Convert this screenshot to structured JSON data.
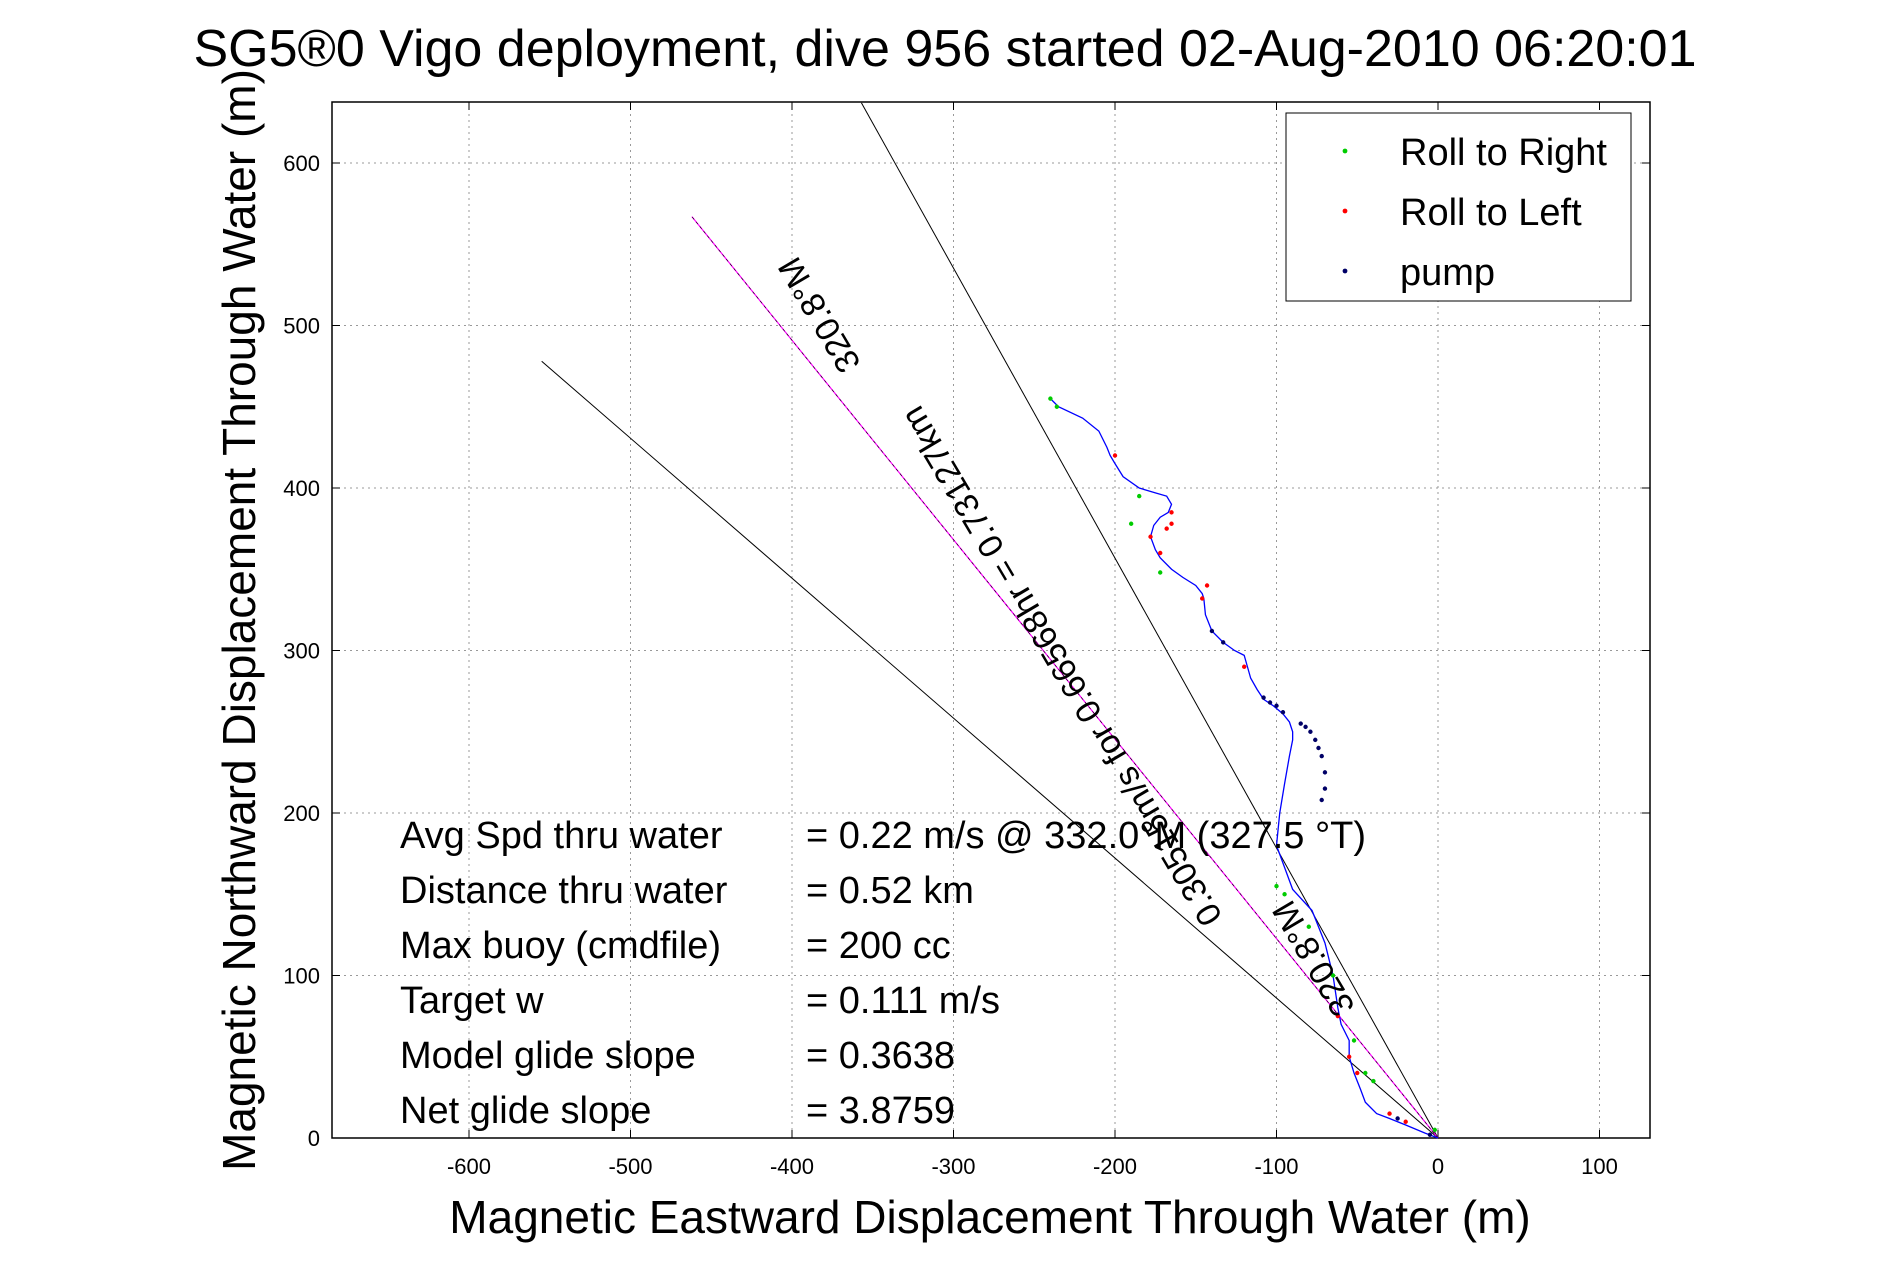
{
  "chart_data": {
    "type": "line",
    "title": "SG5®0 Vigo deployment, dive 956 started 02-Aug-2010 06:20:01",
    "xlabel": "Magnetic Eastward Displacement Through Water (m)",
    "ylabel": "Magnetic Northward Displacement Through Water (m)",
    "xlim": [
      -680,
      130
    ],
    "ylim": [
      0,
      640
    ],
    "xticks": [
      -600,
      -500,
      -400,
      -300,
      -200,
      -100,
      0,
      100
    ],
    "yticks": [
      0,
      100,
      200,
      300,
      400,
      500,
      600
    ],
    "xtick_labels": [
      "-600",
      "-500",
      "-400",
      "-300",
      "-200",
      "-100",
      "0",
      "100"
    ],
    "ytick_labels": [
      "0",
      "100",
      "200",
      "300",
      "400",
      "500",
      "600"
    ],
    "grid": true,
    "legend_position": "top-right",
    "legend": [
      {
        "label": "Roll to Right",
        "color": "#00cc00"
      },
      {
        "label": "Roll to Left",
        "color": "#ff0000"
      },
      {
        "label": "pump",
        "color": "#000066"
      }
    ],
    "track": {
      "color": "#0000ff",
      "x": [
        0,
        -8,
        -20,
        -30,
        -38,
        -45,
        -48,
        -52,
        -55,
        -55,
        -60,
        -62,
        -65,
        -70,
        -78,
        -90,
        -100,
        -98,
        -95,
        -92,
        -90,
        -90,
        -92,
        -96,
        -102,
        -108,
        -112,
        -116,
        -118,
        -120,
        -126,
        -133,
        -140,
        -144,
        -145,
        -146,
        -150,
        -158,
        -165,
        -172,
        -175,
        -178,
        -176,
        -172,
        -167,
        -165,
        -168,
        -175,
        -185,
        -195,
        -200,
        -203,
        -205,
        -210,
        -220,
        -235,
        -240
      ],
      "y": [
        0,
        3,
        8,
        12,
        15,
        22,
        30,
        40,
        50,
        60,
        70,
        80,
        100,
        120,
        140,
        153,
        180,
        200,
        218,
        235,
        245,
        250,
        256,
        261,
        266,
        270,
        276,
        283,
        290,
        297,
        300,
        305,
        312,
        322,
        332,
        335,
        340,
        345,
        350,
        357,
        362,
        370,
        377,
        382,
        385,
        390,
        395,
        397,
        400,
        407,
        415,
        420,
        425,
        435,
        443,
        450,
        455
      ]
    },
    "roll_right": {
      "x": [
        -2,
        -40,
        -45,
        -52,
        -65,
        -80,
        -95,
        -100,
        -172,
        -190,
        -185,
        -240,
        -236
      ],
      "y": [
        5,
        35,
        40,
        60,
        100,
        130,
        150,
        155,
        348,
        378,
        395,
        455,
        450
      ]
    },
    "roll_left": {
      "x": [
        -30,
        -50,
        -55,
        -62,
        -120,
        -146,
        -143,
        -168,
        -165,
        -200,
        -172,
        -178,
        -165,
        -20
      ],
      "y": [
        15,
        40,
        50,
        75,
        290,
        332,
        340,
        375,
        385,
        420,
        360,
        370,
        378,
        10
      ]
    },
    "pump": {
      "x": [
        -85,
        -82,
        -79,
        -76,
        -74,
        -72,
        -70,
        -70,
        -72,
        -96,
        -100,
        -104,
        -108,
        -133,
        -140,
        -5,
        -25
      ],
      "y": [
        255,
        253,
        250,
        245,
        240,
        235,
        225,
        215,
        208,
        262,
        266,
        268,
        271,
        305,
        312,
        2,
        12
      ]
    },
    "black_lines": [
      {
        "x": [
          0,
          -357
        ],
        "y": [
          0,
          637
        ]
      },
      {
        "x": [
          0,
          -555
        ],
        "y": [
          0,
          478
        ]
      }
    ],
    "magenta_line": {
      "color": "#ff00ff",
      "x": [
        0,
        -462
      ],
      "y": [
        0,
        567
      ]
    },
    "rotated_labels": [
      {
        "text": "320.8°M",
        "x": -377,
        "y": 510
      },
      {
        "text": "0.30515m/s for 0.66568hr = 0.73127km",
        "x": -227,
        "y": 294
      },
      {
        "text": "320.8°M",
        "x": -71,
        "y": 114
      }
    ],
    "annotations": [
      {
        "label": "Avg Spd thru water",
        "value": "=  0.22 m/s @ 332.0°M (327.5 °T)"
      },
      {
        "label": "Distance thru water",
        "value": "=  0.52 km"
      },
      {
        "label": "Max buoy (cmdfile)",
        "value": "= 200 cc"
      },
      {
        "label": "Target w",
        "value": "= 0.111 m/s"
      },
      {
        "label": "Model glide slope",
        "value": "= 0.3638"
      },
      {
        "label": "Net glide slope",
        "value": "= 3.8759"
      }
    ]
  }
}
